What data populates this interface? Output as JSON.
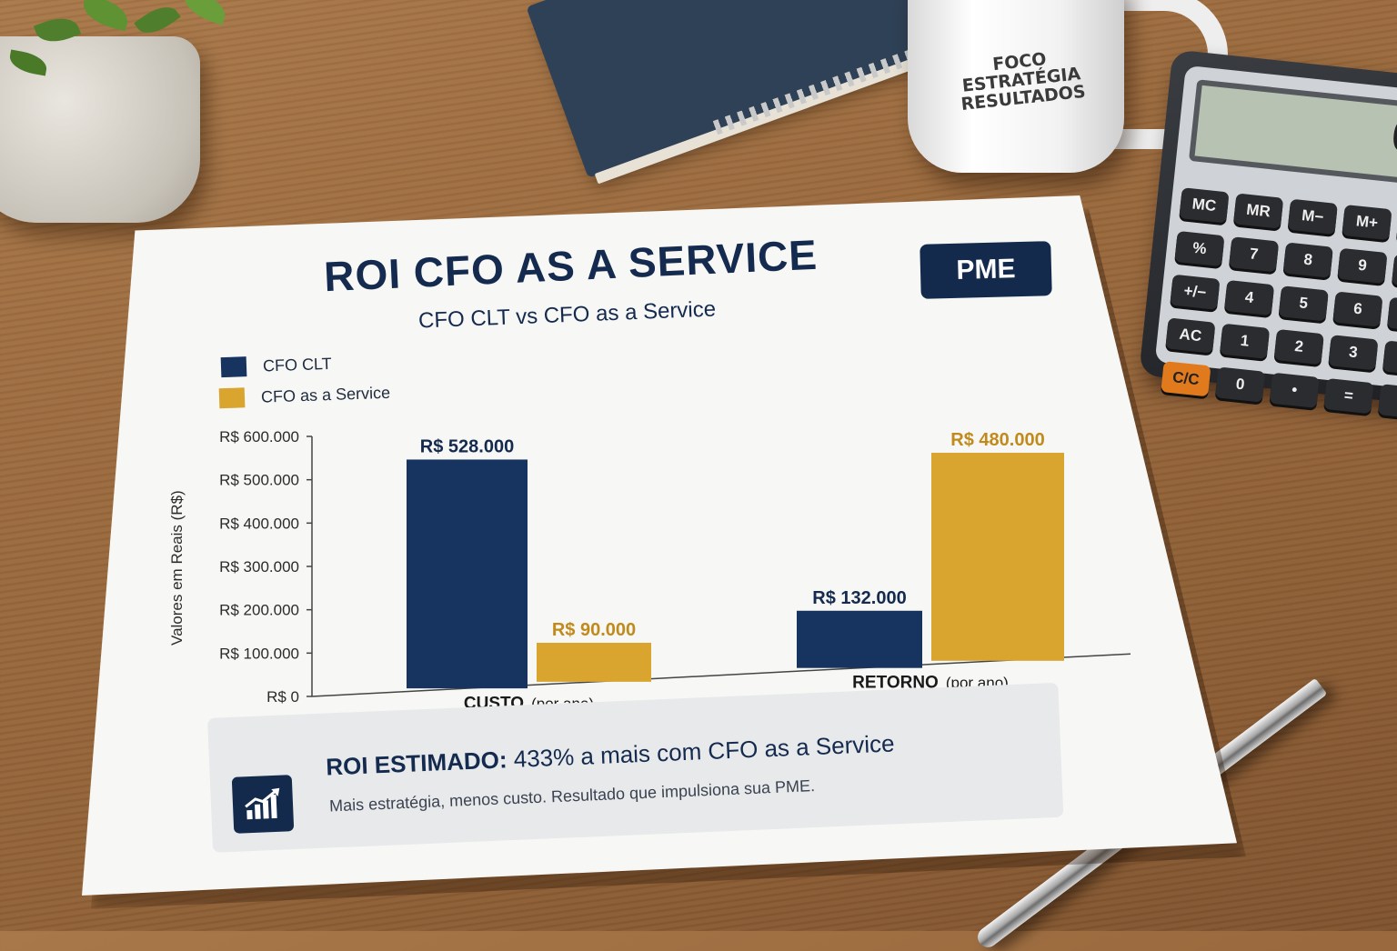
{
  "props": {
    "mug_text": [
      "FOCO",
      "ESTRATÉGIA",
      "RESULTADOS"
    ],
    "calculator_display": "0",
    "calculator_keys": [
      "MC",
      "MR",
      "M−",
      "M+",
      "÷",
      "%",
      "7",
      "8",
      "9",
      "×",
      "+/−",
      "4",
      "5",
      "6",
      "−",
      "AC",
      "1",
      "2",
      "3",
      "+",
      "C/C",
      "0",
      "•",
      "=",
      "+"
    ]
  },
  "document": {
    "title": "ROI CFO AS A SERVICE",
    "subtitle": "CFO CLT vs CFO as a Service",
    "badge": "PME",
    "roi_label": "ROI ESTIMADO:",
    "roi_value": "433% a mais com CFO as a Service",
    "roi_sub": "Mais estratégia, menos custo. Resultado que impulsiona sua PME."
  },
  "chart_data": {
    "type": "bar",
    "title": "ROI CFO AS A SERVICE",
    "subtitle": "CFO CLT vs CFO as a Service",
    "categories": [
      {
        "label": "CUSTO",
        "suffix": "(por ano)"
      },
      {
        "label": "RETORNO",
        "suffix": "(por ano)"
      }
    ],
    "series": [
      {
        "name": "CFO CLT",
        "color": "#16345f",
        "values": [
          528000,
          132000
        ],
        "labels": [
          "R$ 528.000",
          "R$ 132.000"
        ]
      },
      {
        "name": "CFO as a Service",
        "color": "#d9a52e",
        "values": [
          90000,
          480000
        ],
        "labels": [
          "R$ 90.000",
          "R$ 480.000"
        ]
      }
    ],
    "ylabel": "Valores em Reais (R$)",
    "ylim": [
      0,
      600000
    ],
    "yticks": [
      "R$ 0",
      "R$ 100.000",
      "R$ 200.000",
      "R$ 300.000",
      "R$ 400.000",
      "R$ 500.000",
      "R$ 600.000"
    ],
    "label_colors": [
      "#142a4e",
      "#c18a1c"
    ],
    "legend": "top-left",
    "grid": false
  }
}
